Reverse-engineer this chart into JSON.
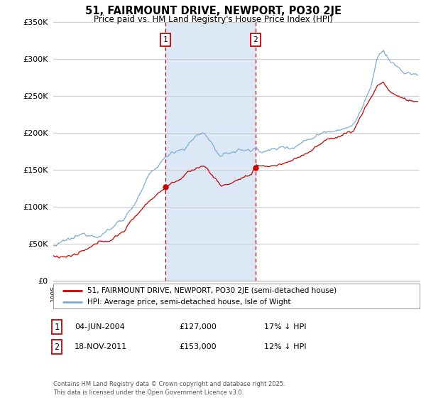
{
  "title": "51, FAIRMOUNT DRIVE, NEWPORT, PO30 2JE",
  "subtitle": "Price paid vs. HM Land Registry's House Price Index (HPI)",
  "hpi_label": "HPI: Average price, semi-detached house, Isle of Wight",
  "property_label": "51, FAIRMOUNT DRIVE, NEWPORT, PO30 2JE (semi-detached house)",
  "purchase1_date": "04-JUN-2004",
  "purchase1_price": 127000,
  "purchase1_hpi": "17% ↓ HPI",
  "purchase2_date": "18-NOV-2011",
  "purchase2_price": 153000,
  "purchase2_hpi": "12% ↓ HPI",
  "footnote": "Contains HM Land Registry data © Crown copyright and database right 2025.\nThis data is licensed under the Open Government Licence v3.0.",
  "hpi_color": "#7badd6",
  "property_color": "#cc0000",
  "background_color": "#ffffff",
  "grid_color": "#cccccc",
  "shaded_region_color": "#dce8f5",
  "ylim_min": 0,
  "ylim_max": 350000,
  "start_year": 1995,
  "end_year": 2025,
  "hpi_key_years": [
    1995.0,
    1996.0,
    1997.0,
    1998.0,
    1999.0,
    2000.0,
    2001.0,
    2002.0,
    2003.0,
    2004.0,
    2004.5,
    2005.0,
    2006.0,
    2007.0,
    2007.5,
    2008.0,
    2008.5,
    2009.0,
    2009.5,
    2010.0,
    2011.0,
    2011.5,
    2011.92,
    2012.0,
    2013.0,
    2014.0,
    2015.0,
    2016.0,
    2017.0,
    2018.0,
    2019.0,
    2020.0,
    2020.5,
    2021.0,
    2021.5,
    2022.0,
    2022.5,
    2023.0,
    2023.5,
    2024.0,
    2024.5,
    2025.3
  ],
  "hpi_key_vals": [
    47000,
    48500,
    51000,
    56000,
    63000,
    72000,
    88000,
    112000,
    138000,
    156000,
    163000,
    172000,
    180000,
    195000,
    197000,
    190000,
    176000,
    162000,
    165000,
    170000,
    172000,
    170000,
    174000,
    173000,
    172000,
    175000,
    180000,
    190000,
    200000,
    208000,
    215000,
    220000,
    235000,
    255000,
    272000,
    305000,
    315000,
    302000,
    295000,
    285000,
    282000,
    278000
  ],
  "prop_key_years": [
    1995.0,
    1996.0,
    1997.0,
    1998.0,
    1999.0,
    2000.0,
    2001.0,
    2002.0,
    2003.0,
    2004.0,
    2004.42,
    2005.0,
    2006.0,
    2007.0,
    2007.5,
    2008.0,
    2008.5,
    2009.0,
    2009.5,
    2010.0,
    2011.0,
    2011.5,
    2011.9,
    2012.0,
    2013.0,
    2014.0,
    2015.0,
    2016.0,
    2017.0,
    2018.0,
    2019.0,
    2020.0,
    2021.0,
    2022.0,
    2022.5,
    2023.0,
    2023.5,
    2024.0,
    2024.5,
    2025.3
  ],
  "prop_key_vals": [
    34000,
    35000,
    37000,
    41000,
    47000,
    54000,
    67000,
    87000,
    108000,
    122000,
    127000,
    134000,
    143000,
    152000,
    155000,
    148000,
    138000,
    128000,
    130000,
    135000,
    142000,
    140000,
    153000,
    153000,
    153000,
    156000,
    162000,
    172000,
    182000,
    190000,
    197000,
    203000,
    235000,
    265000,
    270000,
    258000,
    252000,
    248000,
    245000,
    242000
  ]
}
